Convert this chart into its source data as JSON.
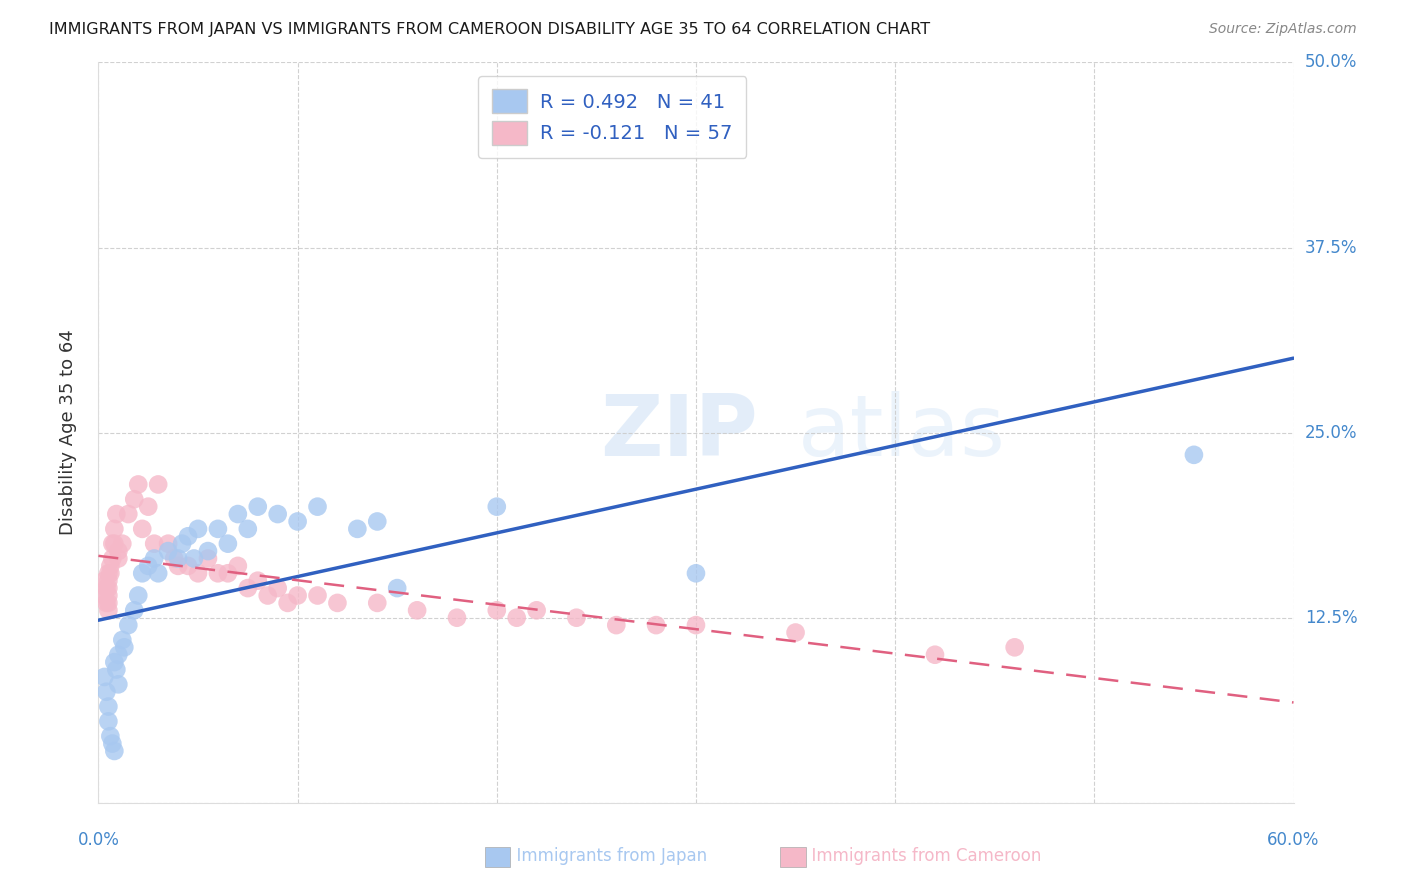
{
  "title": "IMMIGRANTS FROM JAPAN VS IMMIGRANTS FROM CAMEROON DISABILITY AGE 35 TO 64 CORRELATION CHART",
  "source": "Source: ZipAtlas.com",
  "ylabel": "Disability Age 35 to 64",
  "xlim": [
    0.0,
    0.6
  ],
  "ylim": [
    0.0,
    0.5
  ],
  "xticks": [
    0.0,
    0.1,
    0.2,
    0.3,
    0.4,
    0.5,
    0.6
  ],
  "yticks": [
    0.0,
    0.125,
    0.25,
    0.375,
    0.5
  ],
  "xticklabels_show": [
    "0.0%",
    "60.0%"
  ],
  "yticklabels_show": [
    "12.5%",
    "25.0%",
    "37.5%",
    "50.0%"
  ],
  "grid_color": "#cccccc",
  "background_color": "#ffffff",
  "japan_color": "#a8c8f0",
  "cameroon_color": "#f5b8c8",
  "japan_line_color": "#3060c0",
  "cameroon_line_color": "#e06080",
  "tick_label_color": "#4488cc",
  "japan_R": 0.492,
  "japan_N": 41,
  "cameroon_R": -0.121,
  "cameroon_N": 57,
  "japan_scatter_x": [
    0.003,
    0.004,
    0.005,
    0.005,
    0.006,
    0.007,
    0.008,
    0.008,
    0.009,
    0.01,
    0.01,
    0.012,
    0.013,
    0.015,
    0.018,
    0.02,
    0.022,
    0.025,
    0.028,
    0.03,
    0.035,
    0.04,
    0.042,
    0.045,
    0.048,
    0.05,
    0.055,
    0.06,
    0.065,
    0.07,
    0.075,
    0.08,
    0.09,
    0.1,
    0.11,
    0.13,
    0.14,
    0.15,
    0.2,
    0.3,
    0.55
  ],
  "japan_scatter_y": [
    0.085,
    0.075,
    0.065,
    0.055,
    0.045,
    0.04,
    0.035,
    0.095,
    0.09,
    0.08,
    0.1,
    0.11,
    0.105,
    0.12,
    0.13,
    0.14,
    0.155,
    0.16,
    0.165,
    0.155,
    0.17,
    0.165,
    0.175,
    0.18,
    0.165,
    0.185,
    0.17,
    0.185,
    0.175,
    0.195,
    0.185,
    0.2,
    0.195,
    0.19,
    0.2,
    0.185,
    0.19,
    0.145,
    0.2,
    0.155,
    0.235
  ],
  "cameroon_scatter_x": [
    0.003,
    0.003,
    0.004,
    0.004,
    0.005,
    0.005,
    0.005,
    0.005,
    0.005,
    0.005,
    0.006,
    0.006,
    0.007,
    0.007,
    0.008,
    0.008,
    0.009,
    0.01,
    0.01,
    0.012,
    0.015,
    0.018,
    0.02,
    0.022,
    0.025,
    0.028,
    0.03,
    0.035,
    0.038,
    0.04,
    0.045,
    0.05,
    0.055,
    0.06,
    0.065,
    0.07,
    0.075,
    0.08,
    0.085,
    0.09,
    0.095,
    0.1,
    0.11,
    0.12,
    0.14,
    0.16,
    0.18,
    0.2,
    0.21,
    0.22,
    0.24,
    0.26,
    0.28,
    0.3,
    0.35,
    0.42,
    0.46
  ],
  "cameroon_scatter_y": [
    0.15,
    0.14,
    0.145,
    0.135,
    0.155,
    0.15,
    0.145,
    0.14,
    0.135,
    0.13,
    0.16,
    0.155,
    0.165,
    0.175,
    0.175,
    0.185,
    0.195,
    0.17,
    0.165,
    0.175,
    0.195,
    0.205,
    0.215,
    0.185,
    0.2,
    0.175,
    0.215,
    0.175,
    0.165,
    0.16,
    0.16,
    0.155,
    0.165,
    0.155,
    0.155,
    0.16,
    0.145,
    0.15,
    0.14,
    0.145,
    0.135,
    0.14,
    0.14,
    0.135,
    0.135,
    0.13,
    0.125,
    0.13,
    0.125,
    0.13,
    0.125,
    0.12,
    0.12,
    0.12,
    0.115,
    0.1,
    0.105
  ],
  "watermark_line1": "ZIP",
  "watermark_line2": "atlas",
  "japan_label": "Immigrants from Japan",
  "cameroon_label": "Immigrants from Cameroon"
}
